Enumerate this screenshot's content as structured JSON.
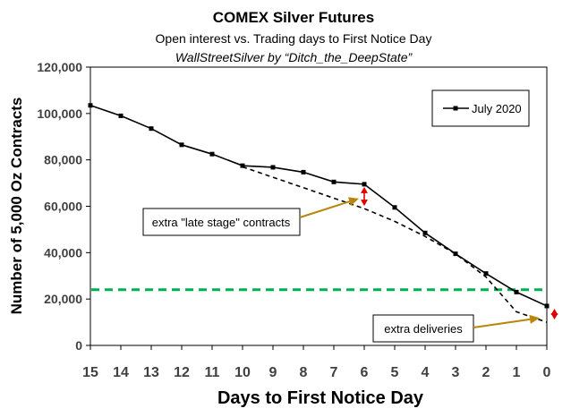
{
  "chart_data": {
    "type": "line",
    "title": "COMEX Silver Futures",
    "subtitle": "Open interest vs. Trading days to First Notice Day",
    "credit": "WallStreetSilver by “Ditch_the_DeepState”",
    "xlabel": "Days to First Notice Day",
    "ylabel": "Number of 5,000 Oz Contracts",
    "x": [
      15,
      14,
      13,
      12,
      11,
      10,
      9,
      8,
      7,
      6,
      5,
      4,
      3,
      2,
      1,
      0
    ],
    "xlim": [
      15,
      0
    ],
    "ylim": [
      0,
      120000
    ],
    "yticks": [
      "0",
      "20,000",
      "40,000",
      "60,000",
      "80,000",
      "100,000",
      "120,000"
    ],
    "ytick_values": [
      0,
      20000,
      40000,
      60000,
      80000,
      100000,
      120000
    ],
    "xticks": [
      "15",
      "14",
      "13",
      "12",
      "11",
      "10",
      "9",
      "8",
      "7",
      "6",
      "5",
      "4",
      "3",
      "2",
      "1",
      "0"
    ],
    "series": [
      {
        "name": "July 2020",
        "values": [
          103500,
          99000,
          93500,
          86500,
          82500,
          77500,
          76800,
          74700,
          70500,
          69500,
          59500,
          48500,
          39500,
          31000,
          23000,
          17000
        ],
        "color": "#000000",
        "style": "solid-with-markers"
      }
    ],
    "trend_line": {
      "x": [
        10,
        9,
        8,
        7,
        6,
        5,
        4,
        3,
        2,
        1,
        0
      ],
      "values": [
        77000,
        72500,
        68000,
        63500,
        59000,
        53500,
        47000,
        39500,
        29500,
        14500,
        10000
      ],
      "color": "#000000",
      "style": "dashed"
    },
    "reference_line": {
      "y": 24000,
      "color": "#00b050",
      "style": "dashed"
    },
    "annotations": [
      {
        "text": "extra \"late stage\" contracts",
        "arrow_to": {
          "x": 6,
          "y": 64500
        }
      },
      {
        "text": "extra deliveries",
        "arrow_to": {
          "x": 0,
          "y": 13000
        }
      }
    ],
    "gaps": [
      {
        "x": 6,
        "y_from": 59000,
        "y_to": 69500
      },
      {
        "x": -0.25,
        "y_from": 10000,
        "y_to": 17000
      }
    ],
    "legend": {
      "position": "top-right",
      "entries": [
        "July 2020"
      ]
    },
    "grid": false
  }
}
